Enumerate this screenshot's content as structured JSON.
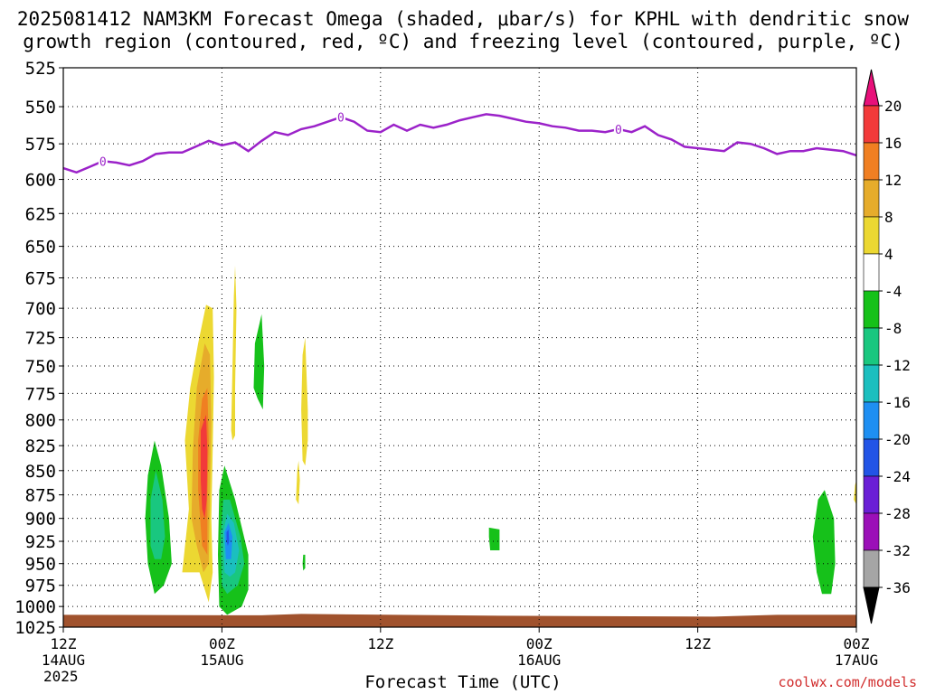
{
  "title": {
    "line1": "2025081412 NAM3KM Forecast Omega (shaded, μbar/s) for KPHL with dendritic snow",
    "line2": "growth region (contoured, red, ºC) and freezing level (contoured, purple, ºC)"
  },
  "credit": "coolwx.com/models",
  "chart_data": {
    "type": "time-height cross-section",
    "title": "2025081412 NAM3KM Forecast Omega (shaded, μbar/s) for KPHL with dendritic snow growth region (contoured, red, ºC) and freezing level (contoured, purple, ºC)",
    "xlabel": "Forecast Time (UTC)",
    "ylabel": "",
    "x_range_hours": [
      0,
      60
    ],
    "y_range_hPa": [
      525,
      1025
    ],
    "y_scale": "log-pressure (inverted)",
    "y_ticks": [
      525,
      550,
      575,
      600,
      625,
      650,
      675,
      700,
      725,
      750,
      775,
      800,
      825,
      850,
      875,
      900,
      925,
      950,
      975,
      1000,
      1025
    ],
    "x_ticks": [
      {
        "hour": 0,
        "line1": "12Z",
        "line2": "14AUG",
        "line3": "2025"
      },
      {
        "hour": 12,
        "line1": "00Z",
        "line2": "15AUG",
        "line3": ""
      },
      {
        "hour": 24,
        "line1": "12Z",
        "line2": "",
        "line3": ""
      },
      {
        "hour": 36,
        "line1": "00Z",
        "line2": "16AUG",
        "line3": ""
      },
      {
        "hour": 48,
        "line1": "12Z",
        "line2": "",
        "line3": ""
      },
      {
        "hour": 60,
        "line1": "00Z",
        "line2": "17AUG",
        "line3": ""
      }
    ],
    "grid": true,
    "colorbar": {
      "labels": [
        "20",
        "16",
        "12",
        "8",
        "4",
        "-4",
        "-8",
        "-12",
        "-16",
        "-20",
        "-24",
        "-28",
        "-32",
        "-36"
      ],
      "colors": [
        "#f23a3a",
        "#f07f22",
        "#e6ac2b",
        "#ecd832",
        "#ffffff",
        "#16c11a",
        "#19c77f",
        "#1bbfbf",
        "#1e8ff2",
        "#2254e6",
        "#6a1fd6",
        "#9b10b8",
        "#a5a5a5"
      ],
      "top_arrow": "#e8107a",
      "bottom_arrow": "#000000"
    },
    "freezing_level": {
      "color": "#9b22c9",
      "label": "0",
      "label_hours": [
        3,
        21,
        42
      ],
      "points_hour_hPa": [
        [
          0,
          592
        ],
        [
          1,
          595
        ],
        [
          2,
          591
        ],
        [
          3,
          587
        ],
        [
          4,
          588
        ],
        [
          5,
          590
        ],
        [
          6,
          587
        ],
        [
          7,
          582
        ],
        [
          8,
          581
        ],
        [
          9,
          581
        ],
        [
          10,
          577
        ],
        [
          11,
          573
        ],
        [
          12,
          576
        ],
        [
          13,
          574
        ],
        [
          14,
          580
        ],
        [
          15,
          573
        ],
        [
          16,
          567
        ],
        [
          17,
          569
        ],
        [
          18,
          565
        ],
        [
          19,
          563
        ],
        [
          20,
          560
        ],
        [
          21,
          557
        ],
        [
          22,
          560
        ],
        [
          23,
          566
        ],
        [
          24,
          567
        ],
        [
          25,
          562
        ],
        [
          26,
          566
        ],
        [
          27,
          562
        ],
        [
          28,
          564
        ],
        [
          29,
          562
        ],
        [
          30,
          559
        ],
        [
          31,
          557
        ],
        [
          32,
          555
        ],
        [
          33,
          556
        ],
        [
          34,
          558
        ],
        [
          35,
          560
        ],
        [
          36,
          561
        ],
        [
          37,
          563
        ],
        [
          38,
          564
        ],
        [
          39,
          566
        ],
        [
          40,
          566
        ],
        [
          41,
          567
        ],
        [
          42,
          565
        ],
        [
          43,
          567
        ],
        [
          44,
          563
        ],
        [
          45,
          569
        ],
        [
          46,
          572
        ],
        [
          47,
          577
        ],
        [
          48,
          578
        ],
        [
          49,
          579
        ],
        [
          50,
          580
        ],
        [
          51,
          574
        ],
        [
          52,
          575
        ],
        [
          53,
          578
        ],
        [
          54,
          582
        ],
        [
          55,
          580
        ],
        [
          56,
          580
        ],
        [
          57,
          578
        ],
        [
          58,
          579
        ],
        [
          59,
          580
        ],
        [
          60,
          583
        ]
      ]
    },
    "omega_regions": [
      {
        "level": "4 to 8",
        "color": "#ecd832",
        "polygon_hour_hPa": [
          [
            9.0,
            960
          ],
          [
            9.5,
            890
          ],
          [
            9.2,
            820
          ],
          [
            9.6,
            770
          ],
          [
            10.2,
            730
          ],
          [
            10.8,
            697
          ],
          [
            11.3,
            700
          ],
          [
            11.4,
            760
          ],
          [
            11.3,
            830
          ],
          [
            11.2,
            900
          ],
          [
            11.3,
            960
          ],
          [
            11.0,
            995
          ],
          [
            10.3,
            960
          ]
        ]
      },
      {
        "level": "8 to 12",
        "color": "#e6ac2b",
        "polygon_hour_hPa": [
          [
            9.7,
            900
          ],
          [
            9.8,
            830
          ],
          [
            10.1,
            770
          ],
          [
            10.7,
            730
          ],
          [
            11.1,
            740
          ],
          [
            11.2,
            800
          ],
          [
            11.1,
            870
          ],
          [
            11.0,
            950
          ],
          [
            10.6,
            960
          ],
          [
            10.1,
            930
          ]
        ]
      },
      {
        "level": "12 to 16",
        "color": "#f07f22",
        "polygon_hour_hPa": [
          [
            10.2,
            870
          ],
          [
            10.2,
            820
          ],
          [
            10.5,
            780
          ],
          [
            10.9,
            770
          ],
          [
            11.0,
            820
          ],
          [
            10.9,
            880
          ],
          [
            10.9,
            940
          ],
          [
            10.5,
            930
          ]
        ]
      },
      {
        "level": "16 to 20",
        "color": "#f23a3a",
        "polygon_hour_hPa": [
          [
            10.4,
            860
          ],
          [
            10.4,
            810
          ],
          [
            10.8,
            795
          ],
          [
            10.9,
            830
          ],
          [
            10.85,
            880
          ],
          [
            10.7,
            900
          ],
          [
            10.5,
            890
          ]
        ]
      },
      {
        "level": "4 to 8",
        "color": "#ecd832",
        "polygon_hour_hPa": [
          [
            12.7,
            810
          ],
          [
            12.8,
            750
          ],
          [
            12.9,
            690
          ],
          [
            13.0,
            665
          ],
          [
            13.1,
            700
          ],
          [
            13.0,
            770
          ],
          [
            13.0,
            815
          ],
          [
            12.8,
            820
          ]
        ]
      },
      {
        "level": "4 to 8",
        "color": "#ecd832",
        "polygon_hour_hPa": [
          [
            18.1,
            840
          ],
          [
            18.0,
            790
          ],
          [
            18.1,
            740
          ],
          [
            18.3,
            725
          ],
          [
            18.5,
            790
          ],
          [
            18.5,
            820
          ],
          [
            18.3,
            845
          ]
        ]
      },
      {
        "level": "4 to 8",
        "color": "#ecd832",
        "polygon_hour_hPa": [
          [
            17.6,
            880
          ],
          [
            17.7,
            850
          ],
          [
            17.8,
            840
          ],
          [
            17.9,
            860
          ],
          [
            17.8,
            885
          ]
        ]
      },
      {
        "level": "4 to 8",
        "color": "#ecd832",
        "polygon_hour_hPa": [
          [
            59.8,
            880
          ],
          [
            59.9,
            865
          ],
          [
            60.0,
            860
          ],
          [
            60.0,
            885
          ]
        ]
      },
      {
        "level": "-8 to -4",
        "color": "#16c11a",
        "polygon_hour_hPa": [
          [
            6.4,
            950
          ],
          [
            6.2,
            900
          ],
          [
            6.4,
            855
          ],
          [
            6.9,
            820
          ],
          [
            7.4,
            845
          ],
          [
            8.0,
            900
          ],
          [
            8.2,
            950
          ],
          [
            7.6,
            975
          ],
          [
            6.9,
            985
          ]
        ]
      },
      {
        "level": "-12 to -8",
        "color": "#19c77f",
        "polygon_hour_hPa": [
          [
            6.6,
            930
          ],
          [
            6.6,
            880
          ],
          [
            7.0,
            850
          ],
          [
            7.5,
            880
          ],
          [
            7.7,
            920
          ],
          [
            7.4,
            945
          ],
          [
            6.9,
            945
          ]
        ]
      },
      {
        "level": "-8 to -4",
        "color": "#16c11a",
        "polygon_hour_hPa": [
          [
            11.8,
            1000
          ],
          [
            11.7,
            940
          ],
          [
            11.8,
            870
          ],
          [
            12.2,
            845
          ],
          [
            13.0,
            880
          ],
          [
            14.0,
            940
          ],
          [
            14.0,
            980
          ],
          [
            13.5,
            1000
          ],
          [
            12.4,
            1010
          ]
        ]
      },
      {
        "level": "-12 to -8",
        "color": "#19c77f",
        "polygon_hour_hPa": [
          [
            12.0,
            975
          ],
          [
            11.9,
            920
          ],
          [
            12.1,
            880
          ],
          [
            12.6,
            880
          ],
          [
            13.4,
            920
          ],
          [
            13.7,
            950
          ],
          [
            13.2,
            975
          ],
          [
            12.4,
            985
          ]
        ]
      },
      {
        "level": "-16 to -12",
        "color": "#1bbfbf",
        "polygon_hour_hPa": [
          [
            12.2,
            960
          ],
          [
            12.1,
            915
          ],
          [
            12.4,
            895
          ],
          [
            12.9,
            905
          ],
          [
            13.3,
            935
          ],
          [
            13.0,
            960
          ],
          [
            12.6,
            965
          ]
        ]
      },
      {
        "level": "-20 to -16",
        "color": "#1e8ff2",
        "polygon_hour_hPa": [
          [
            12.3,
            945
          ],
          [
            12.2,
            915
          ],
          [
            12.5,
            905
          ],
          [
            12.8,
            920
          ],
          [
            12.7,
            945
          ]
        ]
      },
      {
        "level": "-24 to -20",
        "color": "#2254e6",
        "polygon_hour_hPa": [
          [
            12.35,
            925
          ],
          [
            12.35,
            915
          ],
          [
            12.5,
            912
          ],
          [
            12.55,
            925
          ],
          [
            12.45,
            930
          ]
        ]
      },
      {
        "level": "-8 to -4",
        "color": "#16c11a",
        "polygon_hour_hPa": [
          [
            14.4,
            770
          ],
          [
            14.5,
            730
          ],
          [
            15.0,
            705
          ],
          [
            15.2,
            750
          ],
          [
            15.1,
            790
          ],
          [
            14.7,
            780
          ]
        ]
      },
      {
        "level": "-8 to -4",
        "color": "#16c11a",
        "polygon_hour_hPa": [
          [
            18.1,
            950
          ],
          [
            18.15,
            940
          ],
          [
            18.3,
            940
          ],
          [
            18.3,
            955
          ],
          [
            18.15,
            958
          ]
        ]
      },
      {
        "level": "-8 to -4",
        "color": "#16c11a",
        "polygon_hour_hPa": [
          [
            32.2,
            920
          ],
          [
            32.2,
            910
          ],
          [
            33.0,
            912
          ],
          [
            33.0,
            935
          ],
          [
            32.3,
            935
          ]
        ]
      },
      {
        "level": "-8 to -4",
        "color": "#16c11a",
        "polygon_hour_hPa": [
          [
            57.0,
            960
          ],
          [
            56.7,
            920
          ],
          [
            57.1,
            880
          ],
          [
            57.6,
            870
          ],
          [
            58.3,
            900
          ],
          [
            58.4,
            950
          ],
          [
            58.1,
            985
          ],
          [
            57.4,
            985
          ]
        ]
      }
    ],
    "terrain": {
      "color": "#a0522d",
      "top_hPa": 1010
    }
  }
}
